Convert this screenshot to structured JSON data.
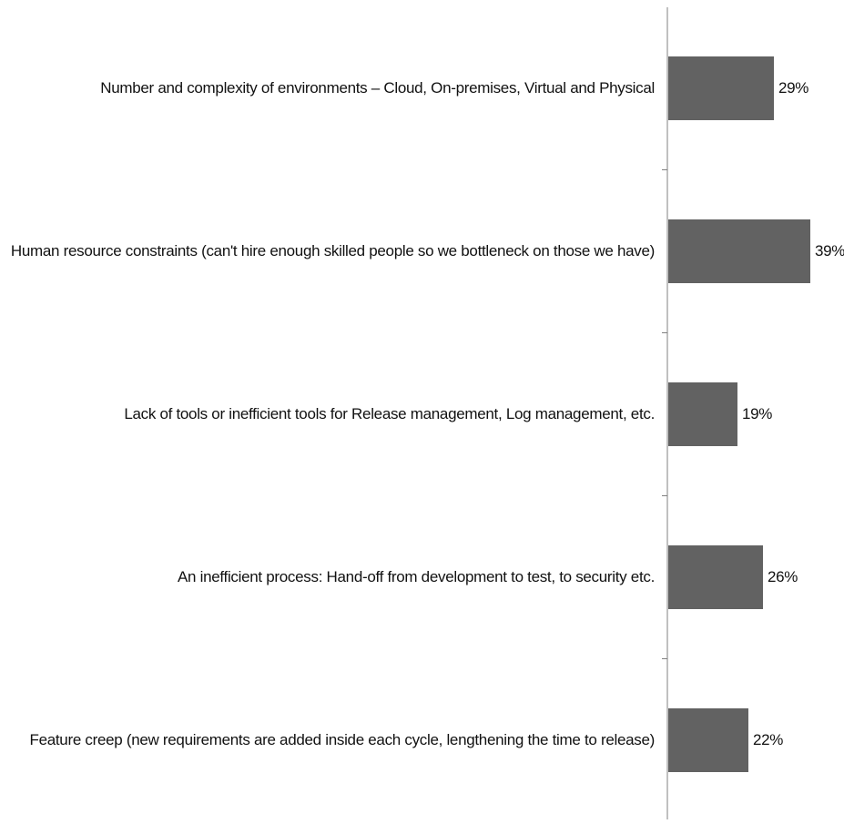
{
  "chart_data": {
    "type": "bar",
    "orientation": "horizontal",
    "categories": [
      "Number and complexity of environments – Cloud, On-premises, Virtual and Physical",
      "Human resource constraints (can't hire enough skilled people so we bottleneck on those we have)",
      "Lack of tools or inefficient tools for Release management, Log management, etc.",
      "An inefficient process: Hand-off from development to test, to security etc.",
      "Feature creep (new requirements are added inside each cycle, lengthening the time to release)"
    ],
    "values": [
      29,
      39,
      19,
      26,
      22
    ],
    "value_labels": [
      "29%",
      "39%",
      "19%",
      "26%",
      "22%"
    ],
    "title": "",
    "xlabel": "",
    "ylabel": "",
    "grid": false,
    "legend": "none",
    "colors": {
      "bar": "#626262",
      "axis": "#808080",
      "text": "#111111"
    }
  }
}
